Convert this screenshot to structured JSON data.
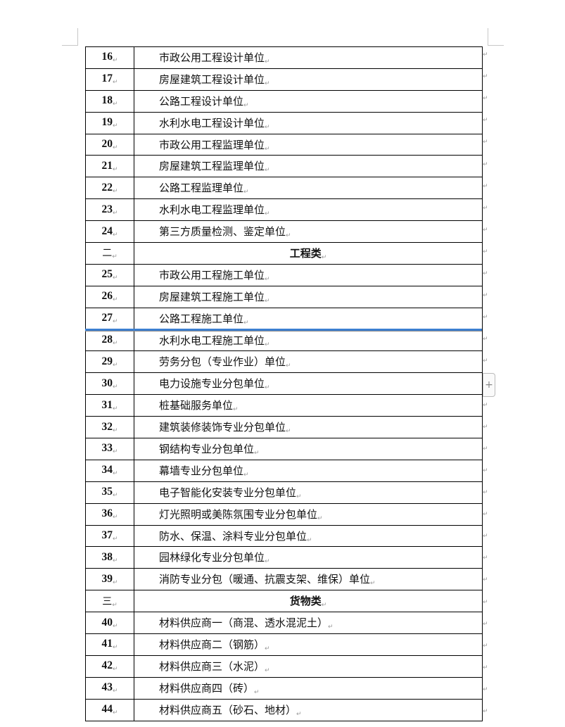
{
  "rows": [
    {
      "num": "16",
      "text": "市政公用工程设计单位"
    },
    {
      "num": "17",
      "text": "房屋建筑工程设计单位"
    },
    {
      "num": "18",
      "text": "公路工程设计单位"
    },
    {
      "num": "19",
      "text": "水利水电工程设计单位"
    },
    {
      "num": "20",
      "text": "市政公用工程监理单位"
    },
    {
      "num": "21",
      "text": "房屋建筑工程监理单位"
    },
    {
      "num": "22",
      "text": "公路工程监理单位"
    },
    {
      "num": "23",
      "text": "水利水电工程监理单位"
    },
    {
      "num": "24",
      "text": "第三方质量检测、鉴定单位"
    },
    {
      "num": "二",
      "text": "工程类",
      "section": true
    },
    {
      "num": "25",
      "text": "市政公用工程施工单位"
    },
    {
      "num": "26",
      "text": "房屋建筑工程施工单位"
    },
    {
      "num": "27",
      "text": "公路工程施工单位"
    },
    {
      "num": "28",
      "text": "水利水电工程施工单位"
    },
    {
      "num": "29",
      "text": "劳务分包（专业作业）单位"
    },
    {
      "num": "30",
      "text": "电力设施专业分包单位"
    },
    {
      "num": "31",
      "text": "桩基础服务单位"
    },
    {
      "num": "32",
      "text": "建筑装修装饰专业分包单位"
    },
    {
      "num": "33",
      "text": "钢结构专业分包单位"
    },
    {
      "num": "34",
      "text": "幕墙专业分包单位"
    },
    {
      "num": "35",
      "text": "电子智能化安装专业分包单位"
    },
    {
      "num": "36",
      "text": "灯光照明或美陈氛围专业分包单位"
    },
    {
      "num": "37",
      "text": "防水、保温、涂料专业分包单位"
    },
    {
      "num": "38",
      "text": "园林绿化专业分包单位"
    },
    {
      "num": "39",
      "text": "消防专业分包（暖通、抗震支架、维保）单位"
    },
    {
      "num": "三",
      "text": "货物类",
      "section": true
    },
    {
      "num": "40",
      "text": "材料供应商一（商混、透水混泥土）"
    },
    {
      "num": "41",
      "text": "材料供应商二（钢筋）"
    },
    {
      "num": "42",
      "text": "材料供应商三（水泥）"
    },
    {
      "num": "43",
      "text": "材料供应商四（砖）"
    },
    {
      "num": "44",
      "text": "材料供应商五（砂石、地材）"
    }
  ],
  "add_row_button": {
    "label": "+"
  },
  "colors": {
    "insert_indicator": "#3d7fd0"
  }
}
